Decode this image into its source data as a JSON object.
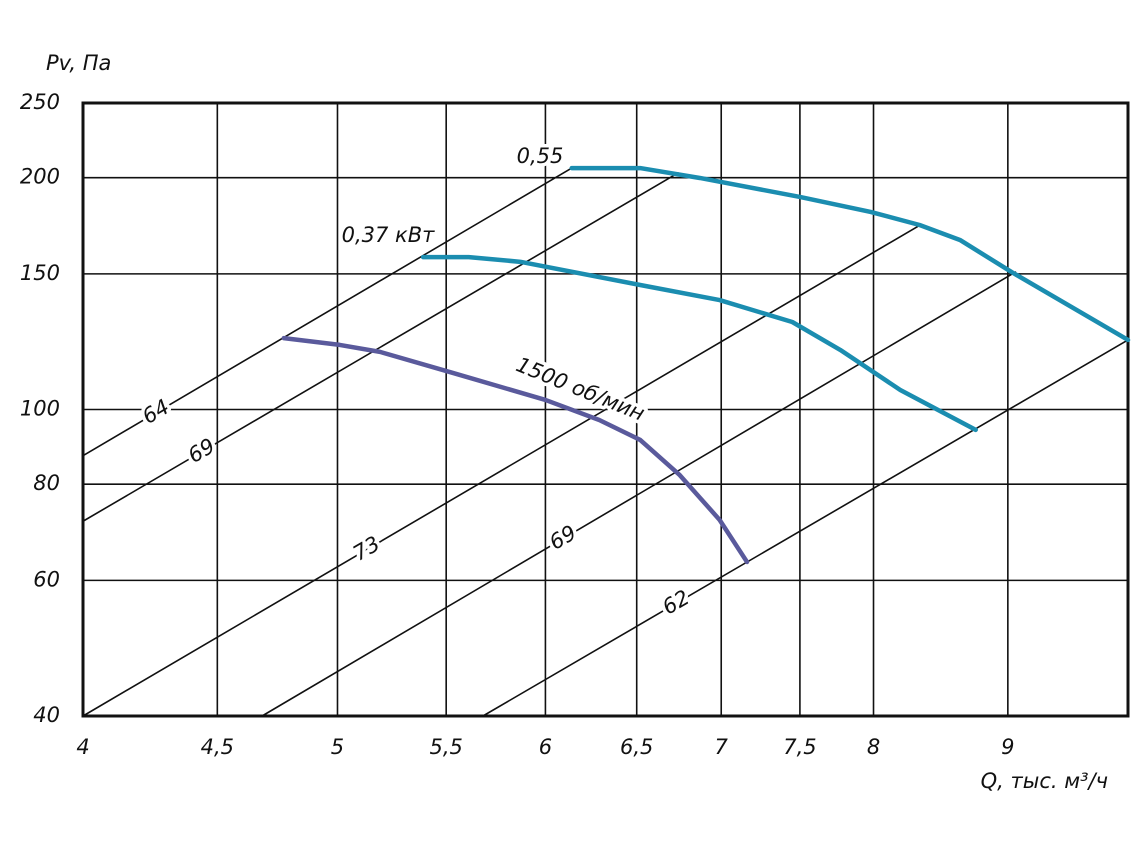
{
  "chart_data": {
    "type": "line",
    "x_label": "Q, тыс. м³/ч",
    "y_label": "Pv, Па",
    "xlim": [
      4,
      10
    ],
    "ylim": [
      40,
      250
    ],
    "log_x": true,
    "log_y": true,
    "grid": true,
    "xticks": [
      4,
      {
        "value": 4.5,
        "label": "4,5"
      },
      5,
      {
        "value": 5.5,
        "label": "5,5"
      },
      6,
      {
        "value": 6.5,
        "label": "6,5"
      },
      7,
      {
        "value": 7.5,
        "label": "7,5"
      },
      8,
      9
    ],
    "yticks": [
      40,
      60,
      80,
      100,
      150,
      200,
      250
    ],
    "series": [
      {
        "name": "1500 об/мин",
        "color": "#5a5a9c",
        "x": [
          4.77,
          5.01,
          5.19,
          5.52,
          6.0,
          6.29,
          6.52,
          6.75,
          6.99,
          7.16
        ],
        "values": [
          123.8,
          121.3,
          118.8,
          111.8,
          102.9,
          96.9,
          91.3,
          82.2,
          71.9,
          63.4
        ]
      },
      {
        "name": "0,37 кВт",
        "color": "#1b8db0",
        "x": [
          5.39,
          5.61,
          5.87,
          6.52,
          6.99,
          7.45,
          7.77,
          8.19,
          8.75
        ],
        "values": [
          157.7,
          157.7,
          155.5,
          145.1,
          138.7,
          129.9,
          119.5,
          106,
          94.1
        ]
      },
      {
        "name": "0,55",
        "color": "#1b8db0",
        "x": [
          6.14,
          6.52,
          6.87,
          7.5,
          7.98,
          8.33,
          8.63,
          9.03,
          10
        ],
        "values": [
          205.8,
          205.8,
          199.8,
          188.8,
          180.5,
          173.6,
          166,
          150.8,
          123.1
        ]
      }
    ],
    "lines": [
      {
        "name": "64",
        "color": "#111111",
        "x": [
          4,
          6.14
        ],
        "values": [
          87.1,
          205.8
        ]
      },
      {
        "name": "69",
        "color": "#111111",
        "x": [
          4,
          6.74
        ],
        "values": [
          71.6,
          202.8
        ]
      },
      {
        "name": "73",
        "color": "#111111",
        "x": [
          4,
          8.32
        ],
        "values": [
          40,
          173
        ]
      },
      {
        "name": "69",
        "color": "#111111",
        "x": [
          4.68,
          9.06
        ],
        "values": [
          40,
          150.8
        ]
      },
      {
        "name": "62",
        "color": "#111111",
        "x": [
          5.68,
          10
        ],
        "values": [
          40,
          123.1
        ]
      }
    ]
  }
}
